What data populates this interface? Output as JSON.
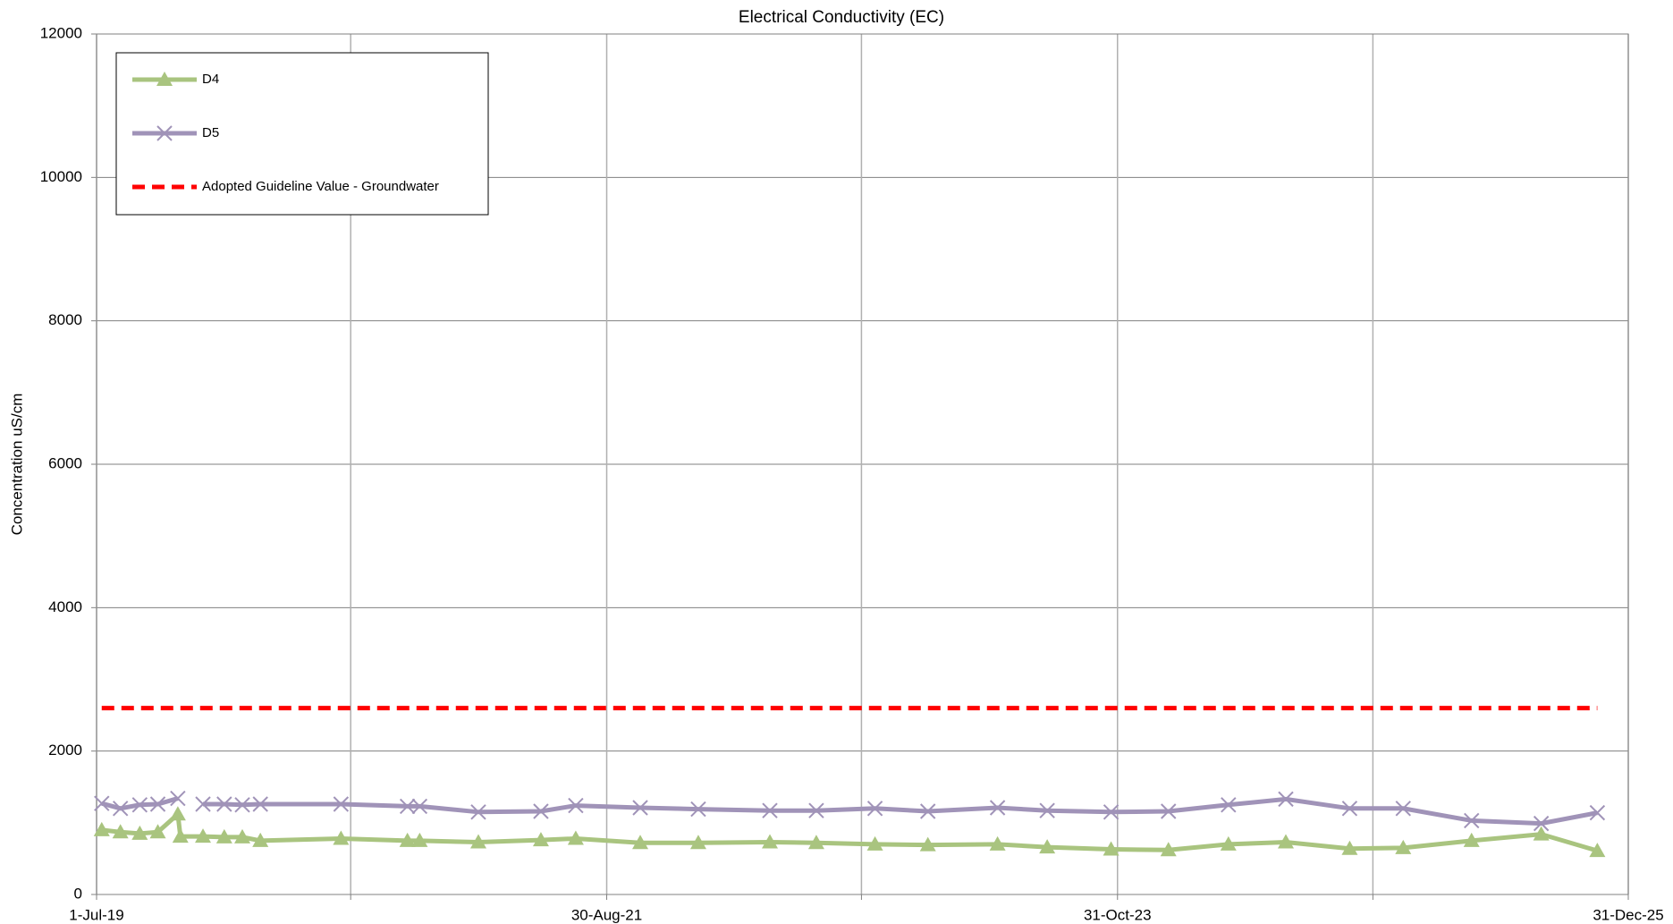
{
  "chart_data": {
    "type": "line",
    "title": "Electrical Conductivity (EC)",
    "y_label": "Concentration uS/cm",
    "x": [
      "2019-07-09",
      "2019-08-07",
      "2019-09-06",
      "2019-10-04",
      "2019-11-04",
      "2019-11-08",
      "2019-12-13",
      "2020-01-15",
      "2020-02-12",
      "2020-03-11",
      "2020-07-14",
      "2020-10-25",
      "2020-11-13",
      "2021-02-12",
      "2021-05-20",
      "2021-07-13",
      "2021-10-21",
      "2022-01-19",
      "2022-05-10",
      "2022-07-21",
      "2022-10-20",
      "2023-01-10",
      "2023-04-28",
      "2023-07-14",
      "2023-10-21",
      "2024-01-18",
      "2024-04-20",
      "2024-07-18",
      "2024-10-25",
      "2025-01-16",
      "2025-05-02",
      "2025-08-18",
      "2025-11-13"
    ],
    "series": [
      {
        "name": "D4",
        "color": "#a9c47f",
        "marker": "triangle",
        "values": [
          900,
          870,
          850,
          870,
          1120,
          810,
          810,
          800,
          800,
          750,
          780,
          750,
          750,
          730,
          760,
          780,
          720,
          720,
          730,
          720,
          700,
          690,
          700,
          660,
          630,
          620,
          700,
          730,
          640,
          650,
          750,
          840,
          610
        ]
      },
      {
        "name": "D5",
        "color": "#a093b8",
        "marker": "x",
        "values": [
          1270,
          1200,
          1250,
          1260,
          1340,
          null,
          1260,
          1260,
          1250,
          1260,
          1260,
          1230,
          1230,
          1150,
          1160,
          1240,
          1210,
          1190,
          1170,
          1170,
          1200,
          1160,
          1210,
          1170,
          1150,
          1160,
          1250,
          1330,
          1200,
          1200,
          1030,
          990,
          1140
        ]
      },
      {
        "name": "Adopted Guideline Value - Groundwater",
        "color": "#ff0000",
        "marker": "none",
        "dashed": true,
        "values": [
          2600,
          2600,
          2600,
          2600,
          2600,
          2600,
          2600,
          2600,
          2600,
          2600,
          2600,
          2600,
          2600,
          2600,
          2600,
          2600,
          2600,
          2600,
          2600,
          2600,
          2600,
          2600,
          2600,
          2600,
          2600,
          2600,
          2600,
          2600,
          2600,
          2600,
          2600,
          2600,
          2600
        ]
      }
    ],
    "xlim": [
      "2019-07-01",
      "2025-12-31"
    ],
    "xticks": [
      {
        "value": "2019-07-01",
        "label": "1-Jul-19"
      },
      {
        "value": "2020-07-29",
        "label": null
      },
      {
        "value": "2021-08-30",
        "label": "30-Aug-21"
      },
      {
        "value": "2022-09-29",
        "label": null
      },
      {
        "value": "2023-10-31",
        "label": "31-Oct-23"
      },
      {
        "value": "2024-11-30",
        "label": null
      },
      {
        "value": "2025-12-31",
        "label": "31-Dec-25"
      }
    ],
    "ylim": [
      0,
      12000
    ],
    "yticks": [
      0,
      2000,
      4000,
      6000,
      8000,
      10000,
      12000
    ],
    "grid": true,
    "legend": "upper-left"
  }
}
